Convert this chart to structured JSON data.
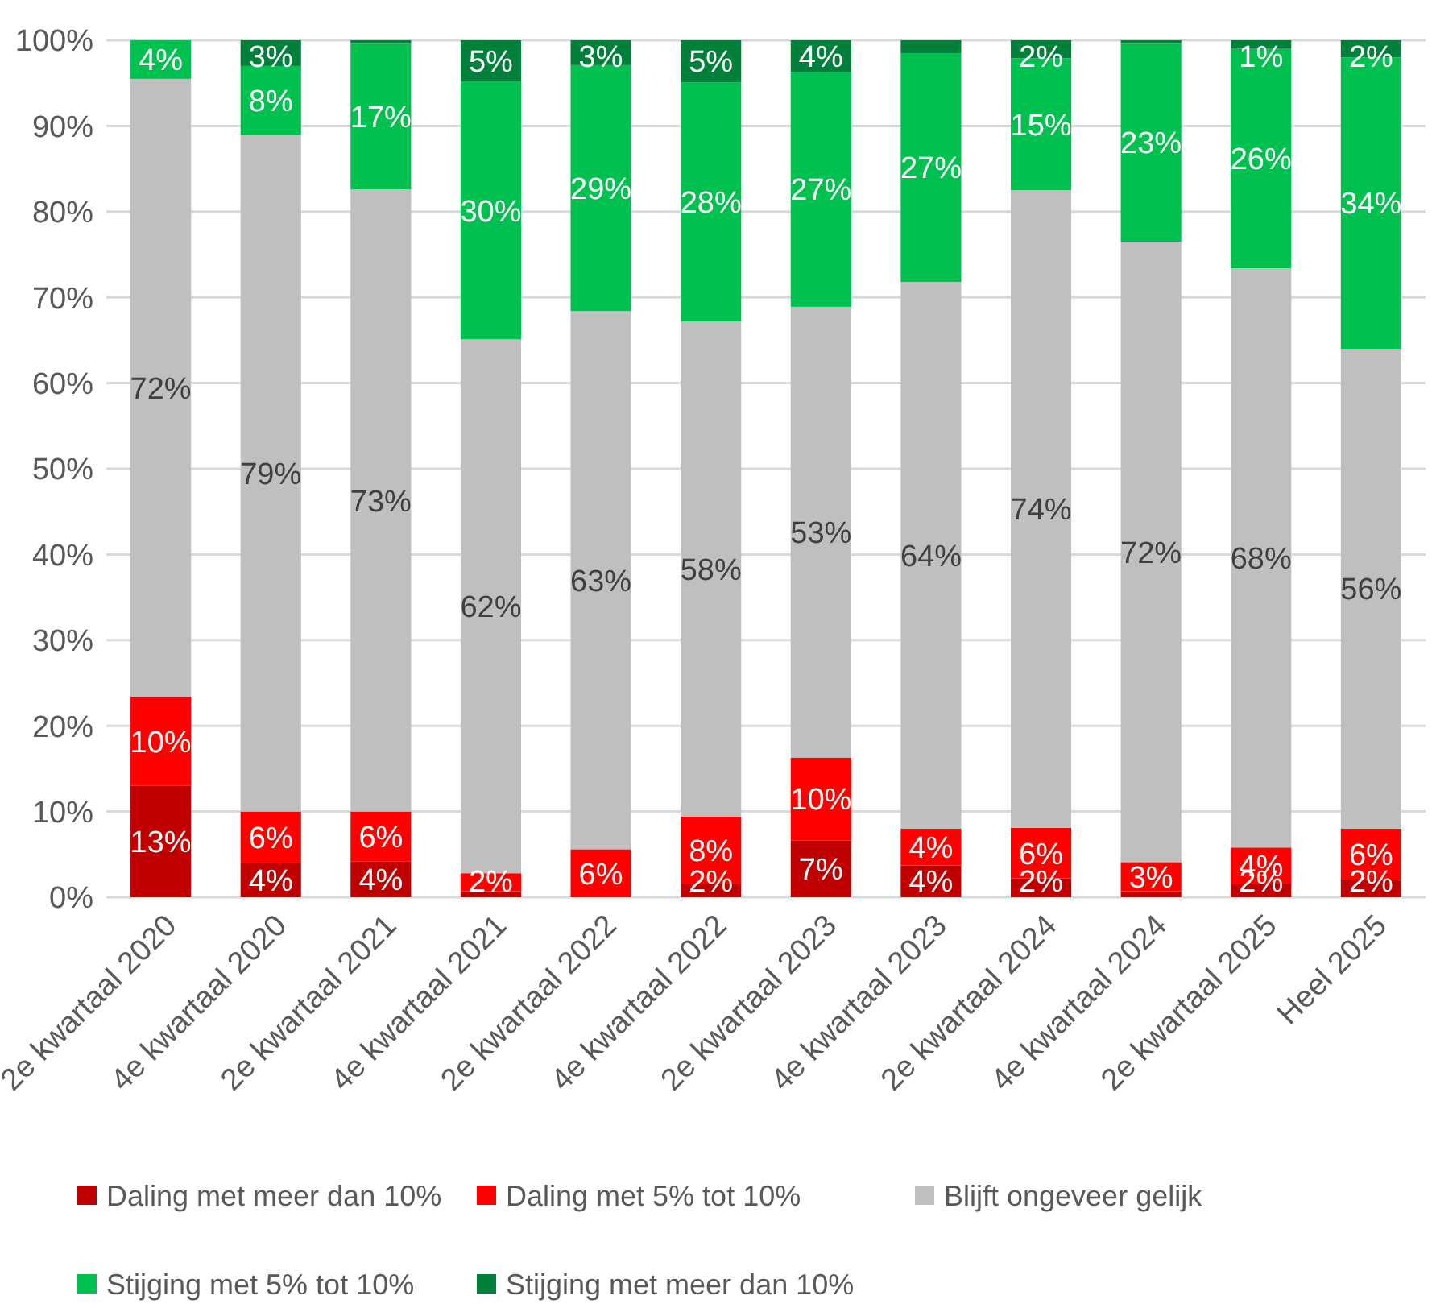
{
  "chart_data": {
    "type": "bar",
    "stacked": true,
    "categories": [
      "2e kwartaal 2020",
      "4e kwartaal 2020",
      "2e kwartaal 2021",
      "4e kwartaal 2021",
      "2e kwartaal 2022",
      "4e kwartaal 2022",
      "2e kwartaal 2023",
      "4e kwartaal 2023",
      "2e kwartaal 2024",
      "4e kwartaal 2024",
      "2e kwartaal 2025",
      "Heel 2025"
    ],
    "series": [
      {
        "name": "Daling met meer dan 10%",
        "color": "#c00000",
        "values": [
          13,
          4,
          4.2,
          0.7,
          0,
          1.6,
          6.6,
          3.7,
          2.2,
          0.7,
          1.6,
          2
        ],
        "value_labels": [
          "13%",
          "4%",
          "4%",
          null,
          null,
          "2%",
          "7%",
          "4%",
          "2%",
          null,
          "2%",
          "2%"
        ]
      },
      {
        "name": "Daling met 5% tot 10%",
        "color": "#ff0000",
        "values": [
          10.4,
          6,
          5.8,
          2.1,
          5.6,
          7.8,
          9.7,
          4.3,
          5.9,
          3.4,
          4.2,
          6
        ],
        "value_labels": [
          "10%",
          "6%",
          "6%",
          "2%",
          "6%",
          "8%",
          "10%",
          "4%",
          "6%",
          "3%",
          "4%",
          "6%"
        ]
      },
      {
        "name": "Blijft ongeveer gelijk",
        "color": "#bfbfbf",
        "values": [
          72.1,
          79,
          72.6,
          62.3,
          62.8,
          57.8,
          52.6,
          63.8,
          74.4,
          72.4,
          67.6,
          56
        ],
        "value_labels": [
          "72%",
          "79%",
          "73%",
          "62%",
          "63%",
          "58%",
          "53%",
          "64%",
          "74%",
          "72%",
          "68%",
          "56%"
        ]
      },
      {
        "name": "Stijging met 5% tot 10%",
        "color": "#00c050",
        "values": [
          4.5,
          8,
          17,
          30.1,
          28.7,
          27.9,
          27.4,
          26.7,
          15.4,
          23.1,
          25.6,
          34
        ],
        "value_labels": [
          "4%",
          "8%",
          "17%",
          "30%",
          "29%",
          "28%",
          "27%",
          "27%",
          "15%",
          "23%",
          "26%",
          "34%"
        ]
      },
      {
        "name": "Stijging met meer dan 10%",
        "color": "#00803a",
        "values": [
          0,
          3,
          0.4,
          4.8,
          2.9,
          4.9,
          3.7,
          1.5,
          2.1,
          0.4,
          1,
          2
        ],
        "value_labels": [
          null,
          "3%",
          null,
          "5%",
          "3%",
          "5%",
          "4%",
          null,
          "2%",
          null,
          "1%",
          "2%"
        ]
      }
    ],
    "ylim": [
      0,
      100
    ],
    "yticks": [
      {
        "value": 0,
        "label": "0%"
      },
      {
        "value": 10,
        "label": "10%"
      },
      {
        "value": 20,
        "label": "20%"
      },
      {
        "value": 30,
        "label": "30%"
      },
      {
        "value": 40,
        "label": "40%"
      },
      {
        "value": 50,
        "label": "50%"
      },
      {
        "value": 60,
        "label": "60%"
      },
      {
        "value": 70,
        "label": "70%"
      },
      {
        "value": 80,
        "label": "80%"
      },
      {
        "value": 90,
        "label": "90%"
      },
      {
        "value": 100,
        "label": "100%"
      }
    ],
    "grid": "y",
    "legend": "bottom"
  }
}
